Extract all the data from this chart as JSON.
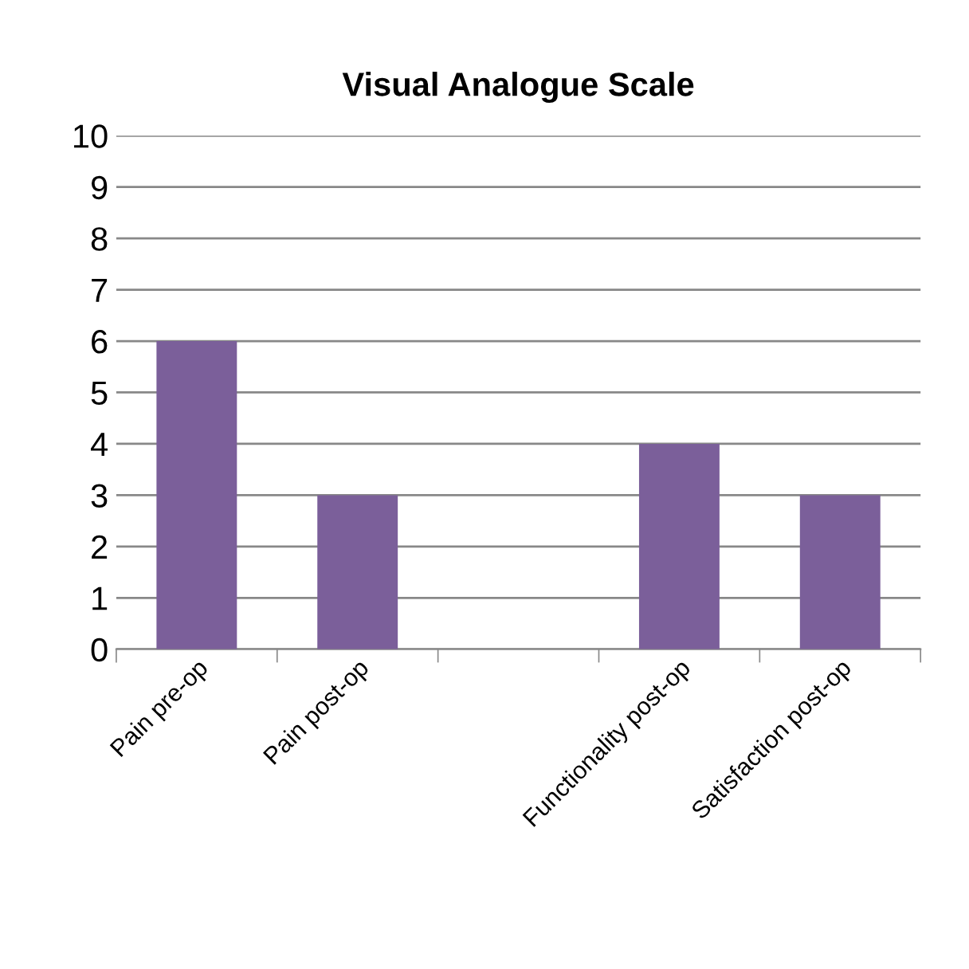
{
  "chart_data": {
    "type": "bar",
    "title": "Visual Analogue Scale",
    "categories": [
      "Pain pre-op",
      "Pain post-op",
      null,
      "Functionality post-op",
      "Satisfaction post-op"
    ],
    "values": [
      6,
      3,
      null,
      4,
      3
    ],
    "color": "#7b5f9a",
    "ylim": [
      0,
      10
    ],
    "yticks": [
      0,
      1,
      2,
      3,
      4,
      5,
      6,
      7,
      8,
      9,
      10
    ],
    "grid": "y",
    "legend": false
  }
}
